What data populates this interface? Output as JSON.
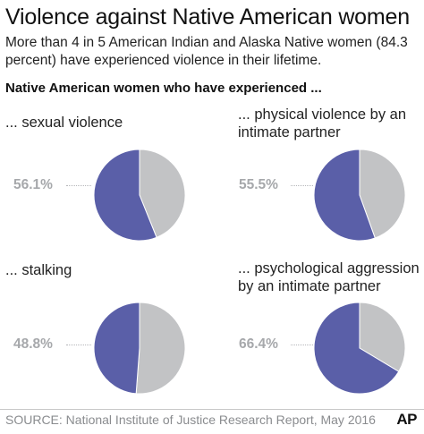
{
  "header": {
    "title": "Violence against Native American women",
    "subtitle": "More than 4 in 5 American Indian and Alaska Native women (84.3 percent) have experienced violence in their lifetime.",
    "section_heading": "Native American women who have experienced ..."
  },
  "colors": {
    "primary": "#5a5fa8",
    "remainder": "#c2c3c5",
    "label": "#a6a8ab"
  },
  "chart_data": [
    {
      "type": "pie",
      "title": "... sexual violence",
      "values": [
        56.1,
        43.9
      ],
      "value_label": "56.1%"
    },
    {
      "type": "pie",
      "title": "... physical violence by an intimate partner",
      "values": [
        55.5,
        44.5
      ],
      "value_label": "55.5%"
    },
    {
      "type": "pie",
      "title": "... stalking",
      "values": [
        48.8,
        51.2
      ],
      "value_label": "48.8%"
    },
    {
      "type": "pie",
      "title": "... psychological aggression by an intimate partner",
      "values": [
        66.4,
        33.6
      ],
      "value_label": "66.4%"
    }
  ],
  "footer": {
    "source": "SOURCE: National Institute of Justice Research Report, May 2016",
    "logo": "AP"
  }
}
